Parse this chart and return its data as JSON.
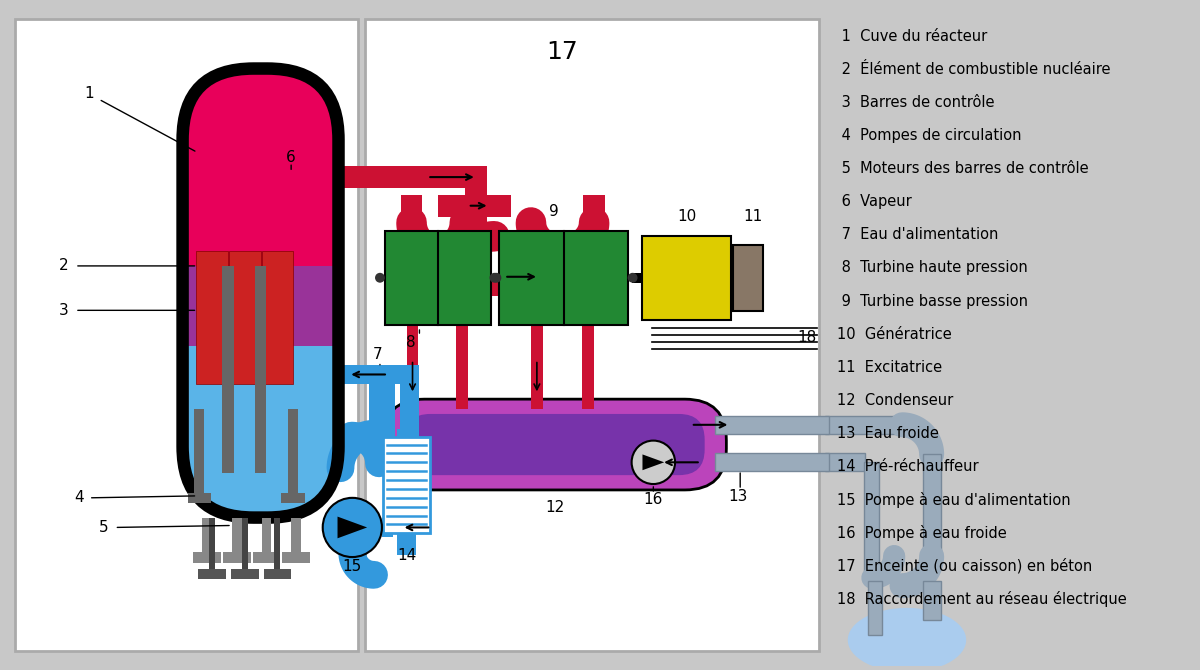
{
  "bg": "#c8c8c8",
  "colors": {
    "reactor_red": "#e8005a",
    "reactor_blue": "#5ab4e8",
    "reactor_mid": "#8833aa",
    "reactor_outline": "#111111",
    "fuel_red": "#cc2222",
    "control_gray": "#666666",
    "steam_red": "#cc1133",
    "water_blue": "#3399dd",
    "turbine_green": "#228833",
    "generator_yellow": "#ddcc00",
    "exciter_brown": "#887766",
    "condenser_magenta": "#bb44bb",
    "condenser_inner": "#7733aa",
    "cold_gray": "#9aabbb",
    "pump_blue": "#3399dd",
    "pond_blue": "#aaccee"
  },
  "legend": [
    " 1  Cuve du réacteur",
    " 2  Élément de combustible nucléaire",
    " 3  Barres de contrôle",
    " 4  Pompes de circulation",
    " 5  Moteurs des barres de contrôle",
    " 6  Vapeur",
    " 7  Eau d'alimentation",
    " 8  Turbine haute pression",
    " 9  Turbine basse pression",
    "10  Génératrice",
    "11  Excitatrice",
    "12  Condenseur",
    "13  Eau froide",
    "14  Pré-réchauffeur",
    "15  Pompe à eau d'alimentation",
    "16  Pompe à eau froide",
    "17  Enceinte (ou caisson) en béton",
    "18  Raccordement au réseau électrique"
  ]
}
